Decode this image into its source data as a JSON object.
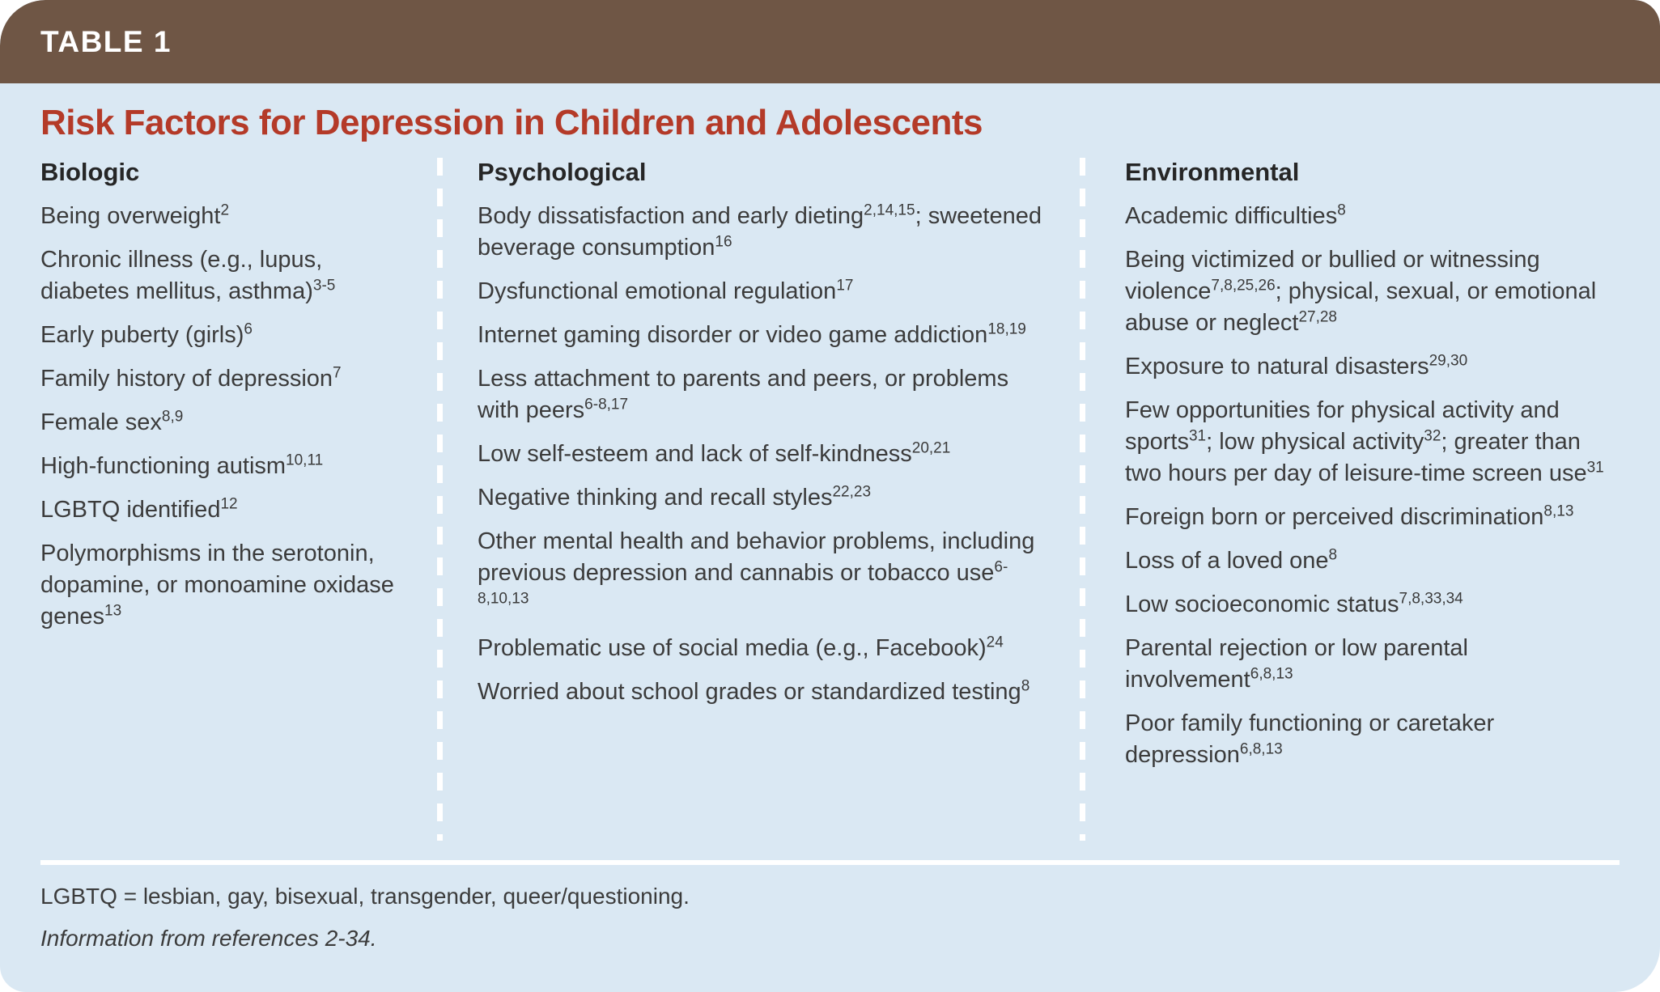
{
  "table_tag": "TABLE 1",
  "title": "Risk Factors for Depression in Children and Adolescents",
  "colors": {
    "header_brown": "#6F5645",
    "body_blue": "#DAE8F3",
    "title_red": "#B43A28",
    "text_dark": "#3B3B3B"
  },
  "columns": [
    {
      "header": "Biologic",
      "items": [
        [
          {
            "text": "Being overweight"
          },
          {
            "sup": "2"
          }
        ],
        [
          {
            "text": "Chronic illness (e.g., lupus, diabetes mellitus, asthma)"
          },
          {
            "sup": "3-5"
          }
        ],
        [
          {
            "text": "Early puberty (girls)"
          },
          {
            "sup": "6"
          }
        ],
        [
          {
            "text": "Family history of depression"
          },
          {
            "sup": "7"
          }
        ],
        [
          {
            "text": "Female sex"
          },
          {
            "sup": "8,9"
          }
        ],
        [
          {
            "text": "High-functioning autism"
          },
          {
            "sup": "10,11"
          }
        ],
        [
          {
            "text": "LGBTQ identified"
          },
          {
            "sup": "12"
          }
        ],
        [
          {
            "text": "Polymorphisms in the serotonin, dopamine, or monoamine oxidase genes"
          },
          {
            "sup": "13"
          }
        ]
      ]
    },
    {
      "header": "Psychological",
      "items": [
        [
          {
            "text": "Body dissatisfaction and early dieting"
          },
          {
            "sup": "2,14,15"
          },
          {
            "text": "; sweetened beverage consumption"
          },
          {
            "sup": "16"
          }
        ],
        [
          {
            "text": "Dysfunctional emotional regulation"
          },
          {
            "sup": "17"
          }
        ],
        [
          {
            "text": "Internet gaming disorder or video game addiction"
          },
          {
            "sup": "18,19"
          }
        ],
        [
          {
            "text": "Less attachment to parents and peers, or problems with peers"
          },
          {
            "sup": "6-8,17"
          }
        ],
        [
          {
            "text": "Low self-esteem and lack of self-kindness"
          },
          {
            "sup": "20,21"
          }
        ],
        [
          {
            "text": "Negative thinking and recall styles"
          },
          {
            "sup": "22,23"
          }
        ],
        [
          {
            "text": "Other mental health and behavior problems, including previous depression and cannabis or tobacco use"
          },
          {
            "sup": "6-8,10,13"
          }
        ],
        [
          {
            "text": "Problematic use of social media (e.g., Facebook)"
          },
          {
            "sup": "24"
          }
        ],
        [
          {
            "text": "Worried about school grades or standardized testing"
          },
          {
            "sup": "8"
          }
        ]
      ]
    },
    {
      "header": "Environmental",
      "items": [
        [
          {
            "text": "Academic difficulties"
          },
          {
            "sup": "8"
          }
        ],
        [
          {
            "text": "Being victimized or bullied or witnessing violence"
          },
          {
            "sup": "7,8,25,26"
          },
          {
            "text": "; physical, sexual, or emotional abuse or neglect"
          },
          {
            "sup": "27,28"
          }
        ],
        [
          {
            "text": "Exposure to natural disasters"
          },
          {
            "sup": "29,30"
          }
        ],
        [
          {
            "text": "Few opportunities for physical activity and sports"
          },
          {
            "sup": "31"
          },
          {
            "text": "; low physical activity"
          },
          {
            "sup": "32"
          },
          {
            "text": "; greater than two hours per day of leisure-time screen use"
          },
          {
            "sup": "31"
          }
        ],
        [
          {
            "text": "Foreign born or perceived discrimination"
          },
          {
            "sup": "8,13"
          }
        ],
        [
          {
            "text": "Loss of a loved one"
          },
          {
            "sup": "8"
          }
        ],
        [
          {
            "text": "Low socioeconomic status"
          },
          {
            "sup": "7,8,33,34"
          }
        ],
        [
          {
            "text": "Parental rejection or low parental involvement"
          },
          {
            "sup": "6,8,13"
          }
        ],
        [
          {
            "text": "Poor family functioning or caretaker depression"
          },
          {
            "sup": "6,8,13"
          }
        ]
      ]
    }
  ],
  "footnotes": {
    "abbreviation": "LGBTQ = lesbian, gay, bisexual, transgender, queer/questioning.",
    "source": "Information from references 2-34."
  }
}
